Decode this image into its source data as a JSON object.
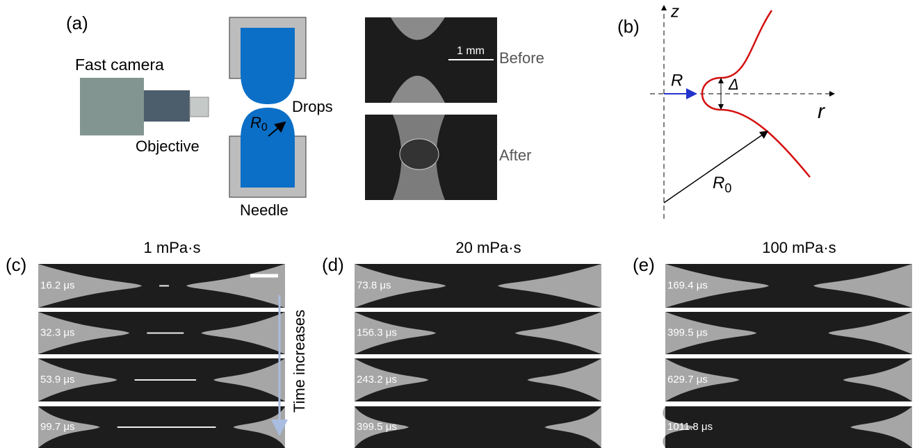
{
  "panel_a": {
    "label": "(a)",
    "camera": "Fast camera",
    "objective": "Objective",
    "drops": "Drops",
    "radius": {
      "symbol": "R",
      "subscript": "0"
    },
    "needle": "Needle",
    "scale": "1 mm",
    "before": "Before",
    "after": "After"
  },
  "panel_b": {
    "label": "(b)",
    "z_axis": "z",
    "r_axis": "r",
    "neck_radius": "R",
    "gap": "Δ",
    "radius": {
      "symbol": "R",
      "subscript": "0"
    }
  },
  "sequences": [
    {
      "label": "(c)",
      "viscosity": "1 mPa·s",
      "times": [
        "16.2 μs",
        "32.3 μs",
        "53.9 μs",
        "99.7 μs"
      ]
    },
    {
      "label": "(d)",
      "viscosity": "20 mPa·s",
      "times": [
        "73.8 μs",
        "156.3 μs",
        "243.2 μs",
        "399.5 μs"
      ]
    },
    {
      "label": "(e)",
      "viscosity": "100 mPa·s",
      "times": [
        "169.4 μs",
        "399.5 μs",
        "629.7 μs",
        "1011.8 μs"
      ]
    }
  ],
  "time_arrow": "Time increases"
}
